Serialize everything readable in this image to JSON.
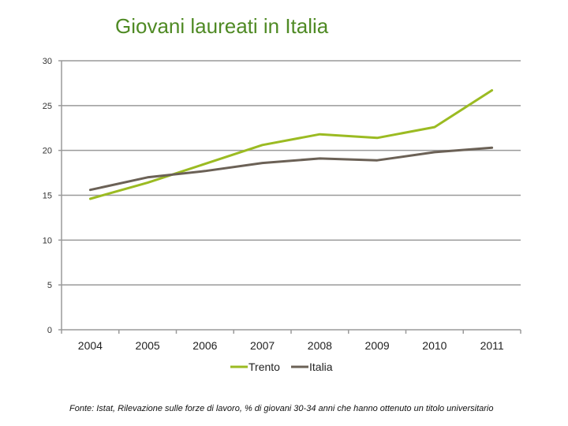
{
  "title": "Giovani laureati in Italia",
  "source": "Fonte: Istat, Rilevazione sulle forze di lavoro, % di giovani 30-34 anni che hanno ottenuto un titolo universitario",
  "chart_data": {
    "type": "line",
    "title": "Giovani laureati in Italia",
    "x": [
      "2004",
      "2005",
      "2006",
      "2007",
      "2008",
      "2009",
      "2010",
      "2011"
    ],
    "series": [
      {
        "name": "Trento",
        "color": "#9bbb22",
        "values": [
          14.6,
          16.4,
          18.5,
          20.6,
          21.8,
          21.4,
          22.6,
          26.7
        ]
      },
      {
        "name": "Italia",
        "color": "#6b6156",
        "values": [
          15.6,
          17.0,
          17.7,
          18.6,
          19.1,
          18.9,
          19.8,
          20.3
        ]
      }
    ],
    "ylim": [
      0,
      30
    ],
    "yticks": [
      "0",
      "5",
      "10",
      "15",
      "20",
      "25",
      "30"
    ],
    "grid": true,
    "legend": "bottom"
  }
}
